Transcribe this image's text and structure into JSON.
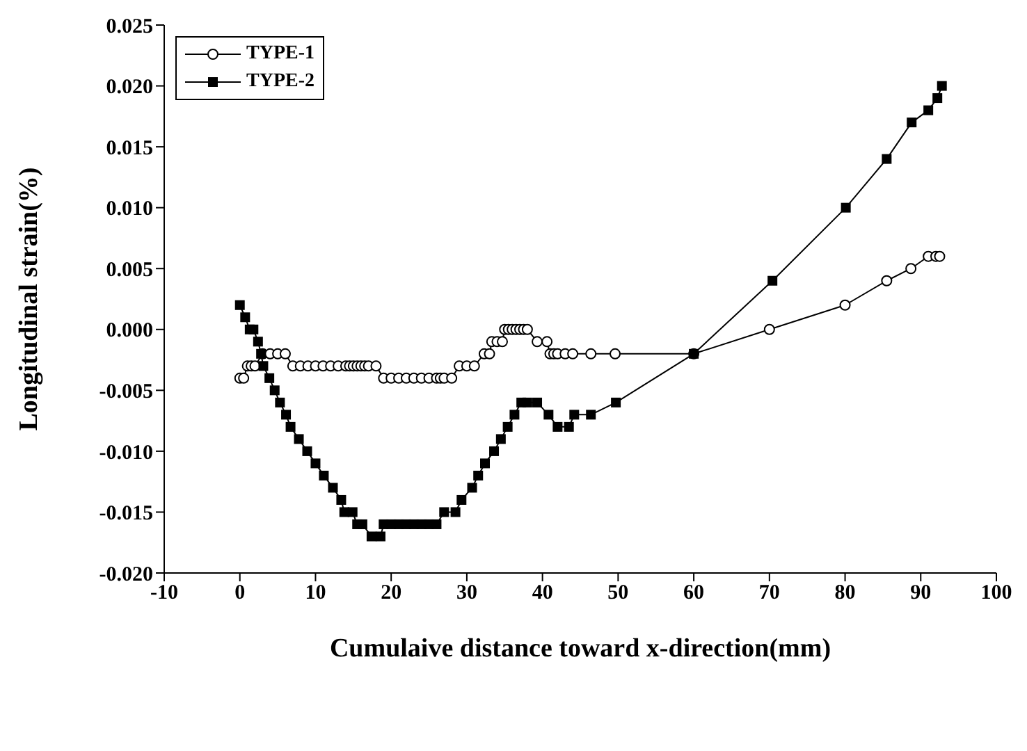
{
  "chart_data": {
    "type": "line",
    "xlabel": "Cumulaive distance toward x-direction(mm)",
    "ylabel": "Longitudinal strain(%)",
    "xlim": [
      -10,
      100
    ],
    "xticks": [
      -10,
      0,
      10,
      20,
      30,
      40,
      50,
      60,
      70,
      80,
      90,
      100
    ],
    "ylim": [
      -0.02,
      0.025
    ],
    "yticks": [
      {
        "value": -0.02,
        "label": "-0.020"
      },
      {
        "value": -0.015,
        "label": "-0.015"
      },
      {
        "value": -0.01,
        "label": "-0.010"
      },
      {
        "value": -0.005,
        "label": "-0.005"
      },
      {
        "value": 0,
        "label": "0.000"
      },
      {
        "value": 0.005,
        "label": "0.005"
      },
      {
        "value": 0.01,
        "label": "0.010"
      },
      {
        "value": 0.015,
        "label": "0.015"
      },
      {
        "value": 0.02,
        "label": "0.020"
      },
      {
        "value": 0.025,
        "label": "0.025"
      }
    ],
    "grid": false,
    "legend": "top left",
    "series": [
      {
        "name": "TYPE-1",
        "color": "#000000",
        "marker": "circle",
        "x": [
          0,
          0.5,
          1,
          1.5,
          2,
          3,
          4,
          5,
          6,
          7,
          8,
          9,
          10,
          11,
          12,
          13,
          14,
          14.5,
          15,
          15.5,
          16,
          16.5,
          17,
          18,
          19,
          20,
          21,
          22,
          23,
          24,
          25,
          26,
          26.5,
          27,
          28,
          29,
          30,
          31,
          32.3,
          33,
          33.3,
          34,
          34.7,
          35,
          35.5,
          36,
          36.5,
          37,
          37.5,
          38,
          39.3,
          40.6,
          41,
          41.5,
          42,
          43,
          44,
          46.4,
          49.6,
          60,
          70,
          80,
          85.5,
          88.7,
          91,
          92,
          92.5
        ],
        "values": [
          -0.004,
          -0.004,
          -0.003,
          -0.003,
          -0.003,
          -0.002,
          -0.002,
          -0.002,
          -0.002,
          -0.003,
          -0.003,
          -0.003,
          -0.003,
          -0.003,
          -0.003,
          -0.003,
          -0.003,
          -0.003,
          -0.003,
          -0.003,
          -0.003,
          -0.003,
          -0.003,
          -0.003,
          -0.004,
          -0.004,
          -0.004,
          -0.004,
          -0.004,
          -0.004,
          -0.004,
          -0.004,
          -0.004,
          -0.004,
          -0.004,
          -0.003,
          -0.003,
          -0.003,
          -0.002,
          -0.002,
          -0.001,
          -0.001,
          -0.001,
          0,
          0,
          0,
          0,
          0,
          0,
          0,
          -0.001,
          -0.001,
          -0.002,
          -0.002,
          -0.002,
          -0.002,
          -0.002,
          -0.002,
          -0.002,
          -0.002,
          0,
          0.002,
          0.004,
          0.005,
          0.006,
          0.006,
          0.006
        ]
      },
      {
        "name": "TYPE-2",
        "color": "#000000",
        "marker": "square",
        "x": [
          0,
          0.7,
          1.3,
          1.8,
          2.4,
          2.8,
          3.1,
          3.9,
          4.6,
          5.3,
          6.1,
          6.7,
          7.8,
          8.9,
          10,
          11.1,
          12.3,
          13.4,
          13.8,
          14.9,
          15.5,
          16.2,
          17.4,
          18.6,
          19,
          20,
          21,
          22,
          23,
          24,
          25,
          26,
          27,
          28.5,
          29.3,
          30.7,
          31.5,
          32.4,
          33.6,
          34.5,
          35.4,
          36.3,
          37.2,
          38,
          39.3,
          40.8,
          42,
          43.5,
          44.2,
          46.4,
          49.7,
          60,
          70.4,
          80.1,
          85.5,
          88.8,
          91,
          92.2,
          92.8
        ],
        "values": [
          0.002,
          0.001,
          0,
          0,
          -0.001,
          -0.002,
          -0.003,
          -0.004,
          -0.005,
          -0.006,
          -0.007,
          -0.008,
          -0.009,
          -0.01,
          -0.011,
          -0.012,
          -0.013,
          -0.014,
          -0.015,
          -0.015,
          -0.016,
          -0.016,
          -0.017,
          -0.017,
          -0.016,
          -0.016,
          -0.016,
          -0.016,
          -0.016,
          -0.016,
          -0.016,
          -0.016,
          -0.015,
          -0.015,
          -0.014,
          -0.013,
          -0.012,
          -0.011,
          -0.01,
          -0.009,
          -0.008,
          -0.007,
          -0.006,
          -0.006,
          -0.006,
          -0.007,
          -0.008,
          -0.008,
          -0.007,
          -0.007,
          -0.006,
          -0.002,
          0.004,
          0.01,
          0.014,
          0.017,
          0.018,
          0.019,
          0.02
        ]
      }
    ]
  }
}
